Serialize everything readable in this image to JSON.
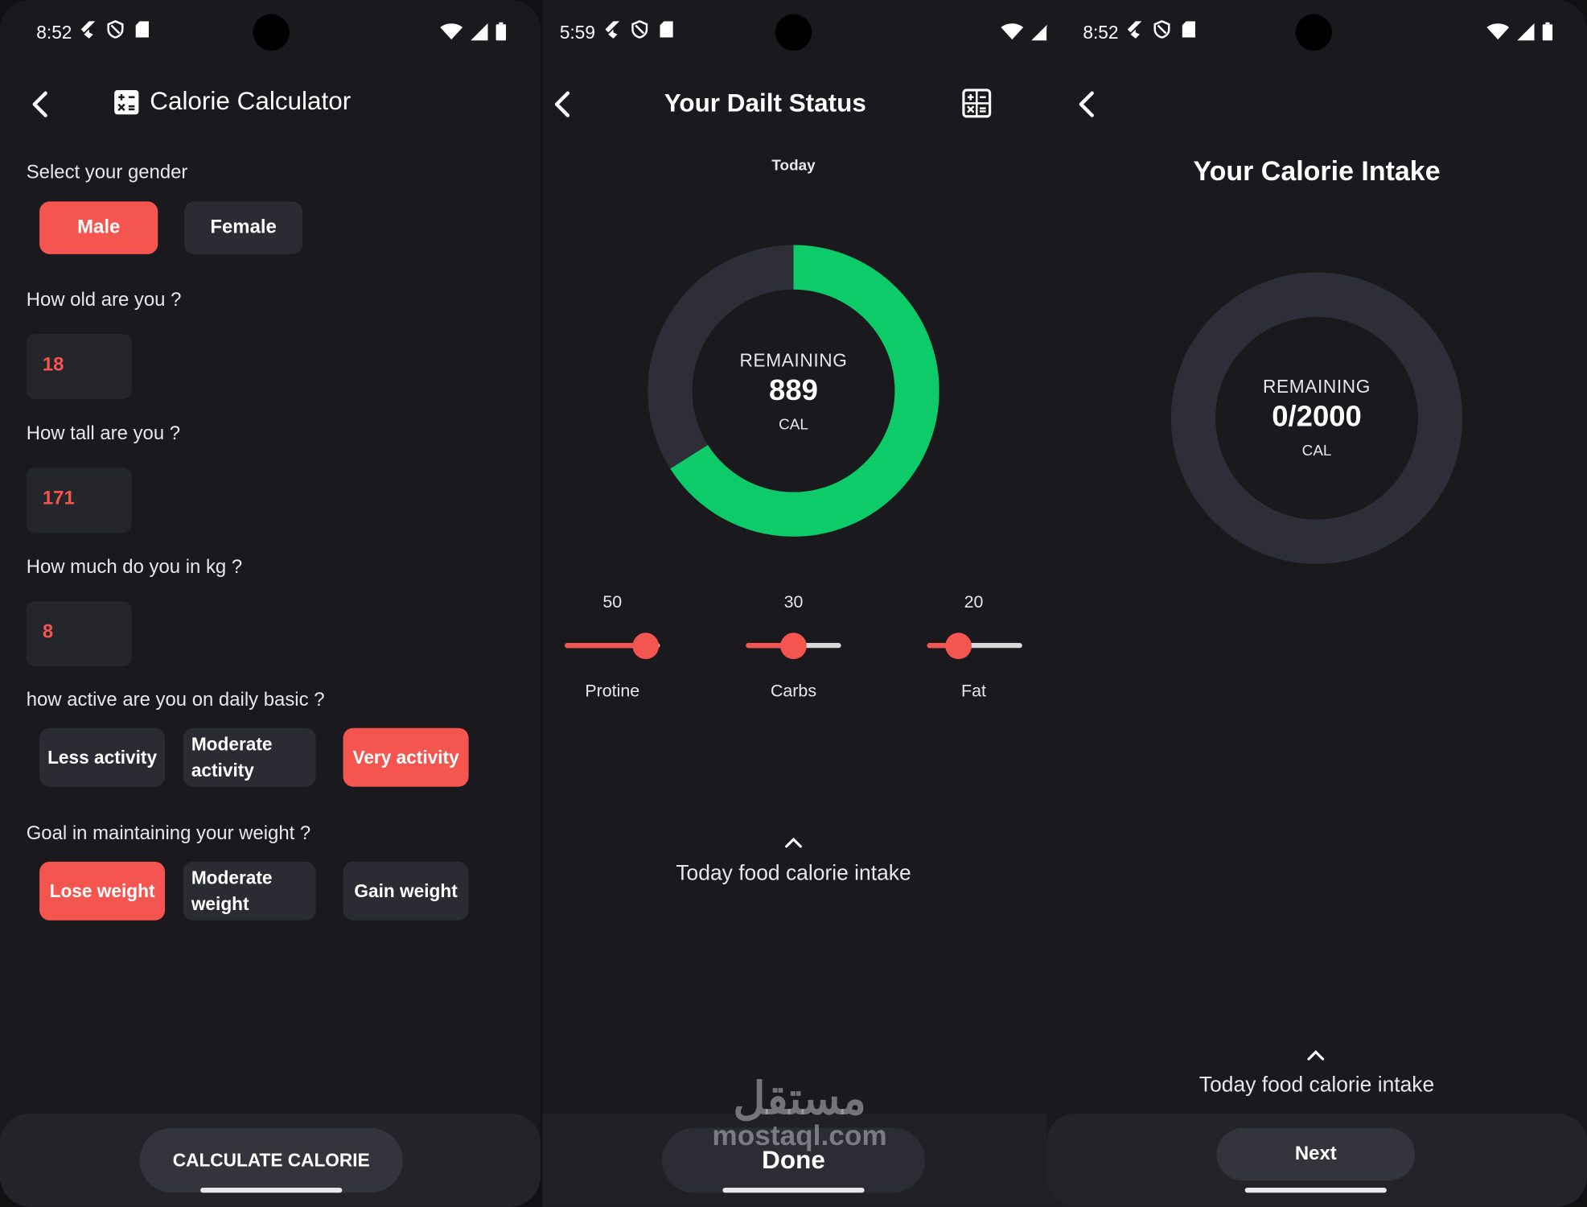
{
  "colors": {
    "accent": "#f4564f",
    "ring_fill": "#0ecb6a",
    "ring_track": "#2e2e38",
    "bg": "#19191e"
  },
  "screen1": {
    "status_time": "8:52",
    "title": "Calorie Calculator",
    "gender_label": "Select your gender",
    "gender_options": [
      "Male",
      "Female"
    ],
    "gender_selected": "Male",
    "age_label": "How old are you ?",
    "age_value": "18",
    "height_label": "How tall are you ?",
    "height_value": "171",
    "weight_label": "How much do you in kg ?",
    "weight_value": "8",
    "activity_label": "how active are you on daily basic ?",
    "activity_options": [
      "Less activity",
      "Moderate activity",
      "Very activity"
    ],
    "activity_selected": "Very activity",
    "goal_label": "Goal in maintaining your weight ?",
    "goal_options": [
      "Lose weight",
      "Moderate weight",
      "Gain weight"
    ],
    "goal_selected": "Lose weight",
    "button": "CALCULATE CALORIE"
  },
  "screen2": {
    "status_time": "5:59",
    "title": "Your Dailt Status",
    "subtitle": "Today",
    "ring_label": "REMAINING",
    "ring_value": "889",
    "ring_unit": "CAL",
    "ring_fraction": 0.66,
    "macros": [
      {
        "name": "Protine",
        "value": "50",
        "fraction": 0.85
      },
      {
        "name": "Carbs",
        "value": "30",
        "fraction": 0.5
      },
      {
        "name": "Fat",
        "value": "20",
        "fraction": 0.33
      }
    ],
    "intake_label": "Today food calorie intake",
    "button": "Done",
    "watermark_arabic": "مستقل",
    "watermark_latin": "mostaql.com"
  },
  "screen3": {
    "status_time": "8:52",
    "title": "Your Calorie Intake",
    "ring_label": "REMAINING",
    "ring_value": "0/2000",
    "ring_unit": "CAL",
    "ring_fraction": 0,
    "intake_label": "Today food calorie intake",
    "button": "Next"
  }
}
